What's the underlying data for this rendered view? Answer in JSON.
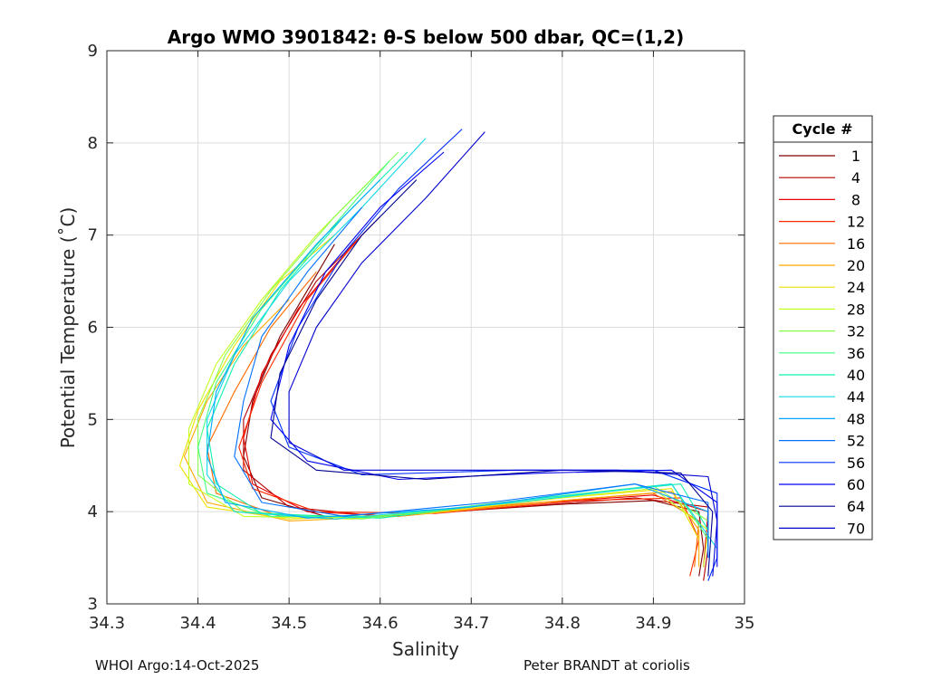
{
  "chart_data": {
    "type": "line",
    "title": "Argo WMO 3901842: θ-S below 500 dbar,  QC=(1,2)",
    "xlabel": "Salinity",
    "ylabel": "Potential Temperature (˚C)",
    "xlim": [
      34.3,
      35.0
    ],
    "ylim": [
      3,
      9
    ],
    "x_ticks": [
      "34.3",
      "34.4",
      "34.5",
      "34.6",
      "34.7",
      "34.8",
      "34.9",
      "35"
    ],
    "y_ticks": [
      "3",
      "4",
      "5",
      "6",
      "7",
      "8",
      "9"
    ],
    "grid": true,
    "legend": {
      "title": "Cycle #",
      "position": "right",
      "entries": [
        {
          "label": "1",
          "color": "#7f0000"
        },
        {
          "label": "4",
          "color": "#b40000"
        },
        {
          "label": "8",
          "color": "#e80000"
        },
        {
          "label": "12",
          "color": "#ff2a00"
        },
        {
          "label": "16",
          "color": "#ff6a00"
        },
        {
          "label": "20",
          "color": "#ffa800"
        },
        {
          "label": "24",
          "color": "#f0e000"
        },
        {
          "label": "28",
          "color": "#c4ff22"
        },
        {
          "label": "32",
          "color": "#88ff4a"
        },
        {
          "label": "36",
          "color": "#40ff80"
        },
        {
          "label": "40",
          "color": "#10f0b0"
        },
        {
          "label": "44",
          "color": "#10d8e8"
        },
        {
          "label": "48",
          "color": "#00a8ff"
        },
        {
          "label": "52",
          "color": "#0070ff"
        },
        {
          "label": "56",
          "color": "#0030ff"
        },
        {
          "label": "60",
          "color": "#0000f0"
        },
        {
          "label": "64",
          "color": "#000090"
        },
        {
          "label": "70",
          "color": "#0000d0"
        }
      ]
    },
    "series": [
      {
        "name": "cycle 1",
        "color": "#7f0000",
        "points": [
          [
            34.55,
            6.9
          ],
          [
            34.52,
            6.4
          ],
          [
            34.49,
            5.9
          ],
          [
            34.46,
            5.2
          ],
          [
            34.45,
            4.6
          ],
          [
            34.47,
            4.15
          ],
          [
            34.55,
            3.92
          ],
          [
            34.65,
            3.98
          ],
          [
            34.8,
            4.08
          ],
          [
            34.9,
            4.12
          ],
          [
            34.95,
            4.0
          ],
          [
            34.955,
            3.6
          ],
          [
            34.95,
            3.3
          ]
        ]
      },
      {
        "name": "cycle 4",
        "color": "#b40000",
        "points": [
          [
            34.6,
            7.2
          ],
          [
            34.53,
            6.5
          ],
          [
            34.48,
            5.7
          ],
          [
            34.45,
            5.0
          ],
          [
            34.45,
            4.45
          ],
          [
            34.5,
            4.05
          ],
          [
            34.6,
            3.95
          ],
          [
            34.75,
            4.05
          ],
          [
            34.88,
            4.15
          ],
          [
            34.96,
            4.05
          ],
          [
            34.96,
            3.6
          ],
          [
            34.955,
            3.25
          ]
        ]
      },
      {
        "name": "cycle 8",
        "color": "#e80000",
        "points": [
          [
            34.57,
            6.9
          ],
          [
            34.51,
            6.2
          ],
          [
            34.47,
            5.5
          ],
          [
            34.45,
            4.8
          ],
          [
            34.46,
            4.3
          ],
          [
            34.52,
            4.0
          ],
          [
            34.62,
            3.95
          ],
          [
            34.78,
            4.1
          ],
          [
            34.9,
            4.18
          ],
          [
            34.96,
            4.0
          ],
          [
            34.955,
            3.4
          ]
        ]
      },
      {
        "name": "cycle 12",
        "color": "#ff2a00",
        "points": [
          [
            34.58,
            7.0
          ],
          [
            34.52,
            6.3
          ],
          [
            34.47,
            5.4
          ],
          [
            34.445,
            4.7
          ],
          [
            34.46,
            4.25
          ],
          [
            34.53,
            4.0
          ],
          [
            34.66,
            3.98
          ],
          [
            34.82,
            4.12
          ],
          [
            34.93,
            4.15
          ],
          [
            34.95,
            3.7
          ],
          [
            34.94,
            3.3
          ]
        ]
      },
      {
        "name": "cycle 16",
        "color": "#ff6a00",
        "points": [
          [
            34.53,
            6.6
          ],
          [
            34.48,
            6.0
          ],
          [
            34.44,
            5.3
          ],
          [
            34.41,
            4.7
          ],
          [
            34.42,
            4.2
          ],
          [
            34.49,
            3.95
          ],
          [
            34.6,
            3.95
          ],
          [
            34.75,
            4.08
          ],
          [
            34.9,
            4.2
          ],
          [
            34.95,
            3.9
          ],
          [
            34.945,
            3.4
          ]
        ]
      },
      {
        "name": "cycle 20",
        "color": "#ffa800",
        "points": [
          [
            34.5,
            6.3
          ],
          [
            34.45,
            5.8
          ],
          [
            34.41,
            5.2
          ],
          [
            34.385,
            4.6
          ],
          [
            34.41,
            4.1
          ],
          [
            34.5,
            3.9
          ],
          [
            34.62,
            3.95
          ],
          [
            34.8,
            4.12
          ],
          [
            34.92,
            4.22
          ],
          [
            34.95,
            3.8
          ],
          [
            34.95,
            3.4
          ]
        ]
      },
      {
        "name": "cycle 24",
        "color": "#f0e000",
        "points": [
          [
            34.55,
            7.0
          ],
          [
            34.49,
            6.5
          ],
          [
            34.44,
            5.8
          ],
          [
            34.4,
            5.1
          ],
          [
            34.38,
            4.5
          ],
          [
            34.41,
            4.05
          ],
          [
            34.5,
            3.92
          ],
          [
            34.65,
            3.98
          ],
          [
            34.8,
            4.15
          ],
          [
            34.92,
            4.25
          ],
          [
            34.95,
            3.7
          ]
        ]
      },
      {
        "name": "cycle 28",
        "color": "#c4ff22",
        "points": [
          [
            34.6,
            7.7
          ],
          [
            34.53,
            7.0
          ],
          [
            34.47,
            6.3
          ],
          [
            34.42,
            5.6
          ],
          [
            34.39,
            4.9
          ],
          [
            34.39,
            4.3
          ],
          [
            34.45,
            3.95
          ],
          [
            34.57,
            3.92
          ],
          [
            34.75,
            4.1
          ],
          [
            34.9,
            4.25
          ],
          [
            34.96,
            3.8
          ],
          [
            34.955,
            3.4
          ]
        ]
      },
      {
        "name": "cycle 32",
        "color": "#88ff4a",
        "points": [
          [
            34.62,
            7.9
          ],
          [
            34.55,
            7.2
          ],
          [
            34.48,
            6.4
          ],
          [
            34.43,
            5.7
          ],
          [
            34.4,
            5.0
          ],
          [
            34.4,
            4.4
          ],
          [
            34.45,
            4.0
          ],
          [
            34.58,
            3.92
          ],
          [
            34.75,
            4.12
          ],
          [
            34.9,
            4.28
          ],
          [
            34.96,
            3.9
          ]
        ]
      },
      {
        "name": "cycle 36",
        "color": "#40ff80",
        "points": [
          [
            34.61,
            7.8
          ],
          [
            34.54,
            7.0
          ],
          [
            34.47,
            6.2
          ],
          [
            34.42,
            5.4
          ],
          [
            34.4,
            4.7
          ],
          [
            34.41,
            4.2
          ],
          [
            34.48,
            3.95
          ],
          [
            34.6,
            3.95
          ],
          [
            34.78,
            4.15
          ],
          [
            34.92,
            4.3
          ],
          [
            34.96,
            3.7
          ]
        ]
      },
      {
        "name": "cycle 40",
        "color": "#10f0b0",
        "points": [
          [
            34.63,
            7.9
          ],
          [
            34.56,
            7.2
          ],
          [
            34.49,
            6.4
          ],
          [
            34.44,
            5.6
          ],
          [
            34.41,
            4.9
          ],
          [
            34.42,
            4.3
          ],
          [
            34.47,
            3.98
          ],
          [
            34.6,
            3.93
          ],
          [
            34.78,
            4.15
          ],
          [
            34.93,
            4.3
          ],
          [
            34.96,
            3.8
          ]
        ]
      },
      {
        "name": "cycle 44",
        "color": "#10d8e8",
        "points": [
          [
            34.65,
            8.05
          ],
          [
            34.58,
            7.3
          ],
          [
            34.5,
            6.5
          ],
          [
            34.44,
            5.7
          ],
          [
            34.41,
            5.0
          ],
          [
            34.41,
            4.4
          ],
          [
            34.44,
            4.0
          ],
          [
            34.55,
            3.92
          ],
          [
            34.75,
            4.1
          ],
          [
            34.92,
            4.3
          ],
          [
            34.97,
            3.6
          ]
        ]
      },
      {
        "name": "cycle 48",
        "color": "#00a8ff",
        "points": [
          [
            34.6,
            7.6
          ],
          [
            34.53,
            6.9
          ],
          [
            34.46,
            6.1
          ],
          [
            34.42,
            5.3
          ],
          [
            34.41,
            4.6
          ],
          [
            34.43,
            4.1
          ],
          [
            34.52,
            3.93
          ],
          [
            34.7,
            4.05
          ],
          [
            34.88,
            4.3
          ],
          [
            34.96,
            4.0
          ],
          [
            34.96,
            3.5
          ]
        ]
      },
      {
        "name": "cycle 52",
        "color": "#0070ff",
        "points": [
          [
            34.58,
            7.3
          ],
          [
            34.52,
            6.6
          ],
          [
            34.47,
            5.9
          ],
          [
            34.45,
            5.2
          ],
          [
            34.44,
            4.6
          ],
          [
            34.47,
            4.1
          ],
          [
            34.56,
            3.95
          ],
          [
            34.72,
            4.1
          ],
          [
            34.88,
            4.3
          ],
          [
            34.96,
            4.1
          ],
          [
            34.96,
            3.5
          ]
        ]
      },
      {
        "name": "cycle 56",
        "color": "#0030ff",
        "points": [
          [
            34.69,
            8.15
          ],
          [
            34.62,
            7.5
          ],
          [
            34.56,
            6.8
          ],
          [
            34.51,
            6.0
          ],
          [
            34.48,
            5.2
          ],
          [
            34.5,
            4.7
          ],
          [
            34.58,
            4.4
          ],
          [
            34.75,
            4.45
          ],
          [
            34.9,
            4.45
          ],
          [
            34.97,
            4.2
          ],
          [
            34.97,
            3.5
          ],
          [
            34.96,
            3.25
          ]
        ]
      },
      {
        "name": "cycle 60",
        "color": "#0000f0",
        "points": [
          [
            34.67,
            7.9
          ],
          [
            34.6,
            7.3
          ],
          [
            34.54,
            6.6
          ],
          [
            34.5,
            5.8
          ],
          [
            34.48,
            5.0
          ],
          [
            34.52,
            4.55
          ],
          [
            34.62,
            4.35
          ],
          [
            34.78,
            4.42
          ],
          [
            34.92,
            4.45
          ],
          [
            34.97,
            4.1
          ],
          [
            34.97,
            3.4
          ]
        ]
      },
      {
        "name": "cycle 64",
        "color": "#000090",
        "points": [
          [
            34.64,
            7.6
          ],
          [
            34.58,
            7.0
          ],
          [
            34.53,
            6.3
          ],
          [
            34.49,
            5.5
          ],
          [
            34.48,
            4.8
          ],
          [
            34.53,
            4.45
          ],
          [
            34.65,
            4.35
          ],
          [
            34.8,
            4.45
          ],
          [
            34.93,
            4.42
          ],
          [
            34.965,
            4.0
          ],
          [
            34.96,
            3.3
          ]
        ]
      },
      {
        "name": "cycle 70",
        "color": "#0000d0",
        "points": [
          [
            34.715,
            8.12
          ],
          [
            34.65,
            7.4
          ],
          [
            34.58,
            6.7
          ],
          [
            34.53,
            6.0
          ],
          [
            34.5,
            5.3
          ],
          [
            34.5,
            4.75
          ],
          [
            34.56,
            4.45
          ],
          [
            34.7,
            4.45
          ],
          [
            34.86,
            4.45
          ],
          [
            34.96,
            4.38
          ],
          [
            34.97,
            3.9
          ],
          [
            34.965,
            3.3
          ]
        ]
      }
    ]
  },
  "footer": {
    "left": "WHOI Argo:14-Oct-2025",
    "right": "Peter BRANDT at coriolis"
  }
}
